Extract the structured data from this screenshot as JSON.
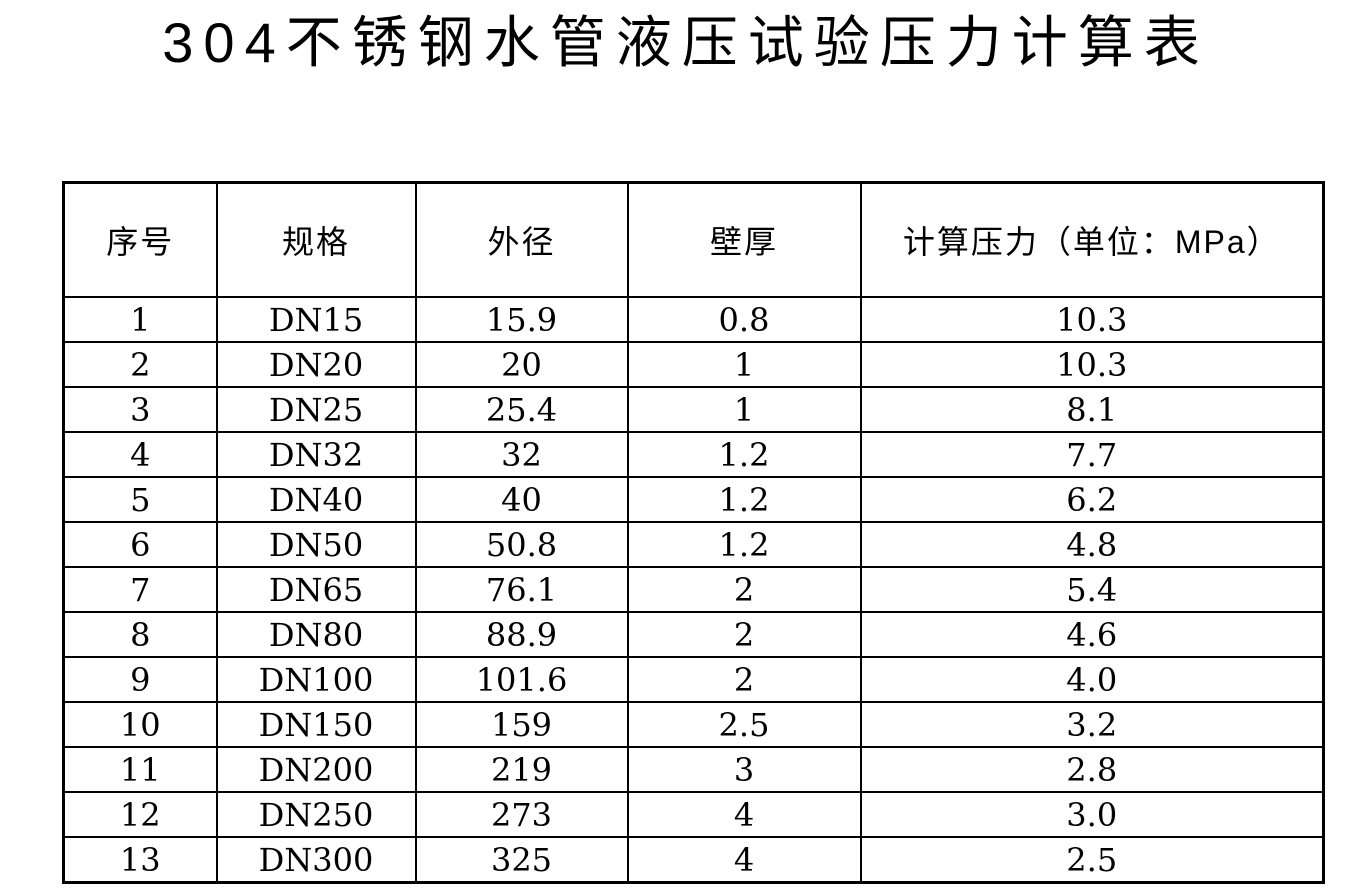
{
  "page": {
    "title": "304不锈钢水管液压试验压力计算表"
  },
  "table": {
    "columns": [
      "序号",
      "规格",
      "外径",
      "壁厚",
      "计算压力（单位：MPa）"
    ],
    "column_keys": [
      "index",
      "spec",
      "outer-diameter",
      "wall-thickness",
      "pressure"
    ],
    "rows": [
      [
        "1",
        "DN15",
        "15.9",
        "0.8",
        "10.3"
      ],
      [
        "2",
        "DN20",
        "20",
        "1",
        "10.3"
      ],
      [
        "3",
        "DN25",
        "25.4",
        "1",
        "8.1"
      ],
      [
        "4",
        "DN32",
        "32",
        "1.2",
        "7.7"
      ],
      [
        "5",
        "DN40",
        "40",
        "1.2",
        "6.2"
      ],
      [
        "6",
        "DN50",
        "50.8",
        "1.2",
        "4.8"
      ],
      [
        "7",
        "DN65",
        "76.1",
        "2",
        "5.4"
      ],
      [
        "8",
        "DN80",
        "88.9",
        "2",
        "4.6"
      ],
      [
        "9",
        "DN100",
        "101.6",
        "2",
        "4.0"
      ],
      [
        "10",
        "DN150",
        "159",
        "2.5",
        "3.2"
      ],
      [
        "11",
        "DN200",
        "219",
        "3",
        "2.8"
      ],
      [
        "12",
        "DN250",
        "273",
        "4",
        "3.0"
      ],
      [
        "13",
        "DN300",
        "325",
        "4",
        "2.5"
      ]
    ],
    "colors": {
      "border": "#000000",
      "text": "#000000",
      "background": "#ffffff"
    }
  }
}
